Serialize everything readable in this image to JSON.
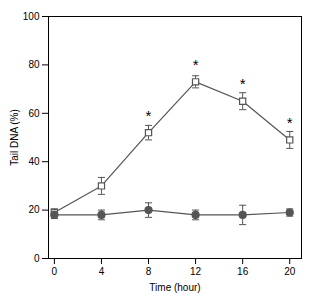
{
  "chart_data": {
    "type": "line",
    "x": [
      0,
      4,
      8,
      12,
      16,
      20
    ],
    "series": [
      {
        "color": "#555555",
        "marker": "square",
        "values": [
          19,
          30,
          52,
          73,
          65,
          49
        ],
        "yerr": [
          1.5,
          3.5,
          3.0,
          2.5,
          3.5,
          3.5
        ]
      },
      {
        "color": "#555555",
        "marker": "circle",
        "values": [
          18,
          18,
          20,
          18,
          18,
          19
        ],
        "yerr": [
          1.5,
          2.0,
          3.0,
          2.0,
          4.0,
          1.5
        ]
      }
    ],
    "annotations": [
      {
        "text": "*",
        "x": 8,
        "y": 57
      },
      {
        "text": "*",
        "x": 12,
        "y": 78
      },
      {
        "text": "*",
        "x": 16,
        "y": 70
      },
      {
        "text": "*",
        "x": 20,
        "y": 54
      }
    ],
    "xlabel": "Time (hour)",
    "ylabel": "Tail DNA (%)",
    "xlim": [
      -0.5,
      21
    ],
    "ylim": [
      0,
      100
    ],
    "xticks": [
      0,
      4,
      8,
      12,
      16,
      20
    ],
    "yticks": [
      0,
      20,
      40,
      60,
      80,
      100
    ],
    "grid": false
  }
}
